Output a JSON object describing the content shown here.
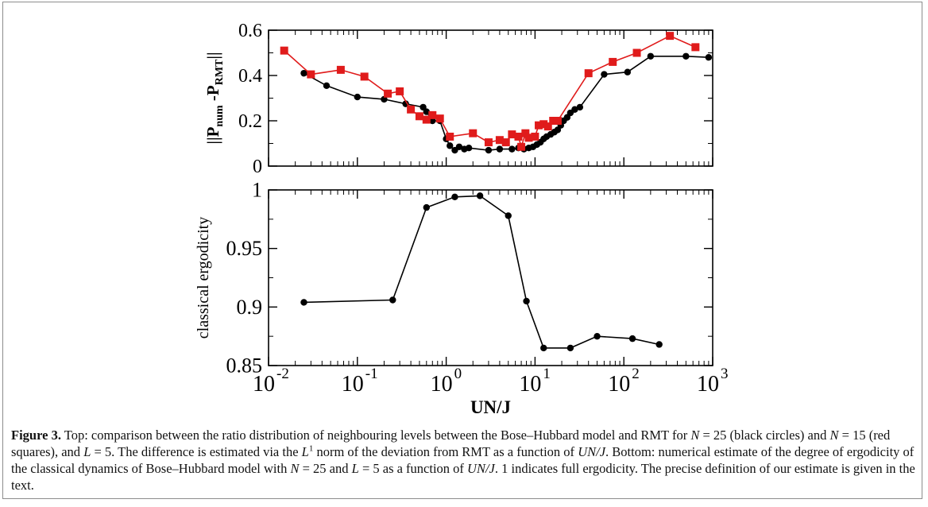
{
  "chart_data": [
    {
      "type": "line",
      "xscale": "log",
      "xlim": [
        0.01,
        1000
      ],
      "ylim": [
        0,
        0.6
      ],
      "yticks": [
        "0",
        "0.2",
        "0.4",
        "0.6"
      ],
      "xlabel": "",
      "ylabel": "||P_num -P_RMT||",
      "series": [
        {
          "color": "#000000",
          "marker": "circle",
          "points": [
            [
              0.025,
              0.41
            ],
            [
              0.045,
              0.355
            ],
            [
              0.1,
              0.305
            ],
            [
              0.2,
              0.295
            ],
            [
              0.35,
              0.275
            ],
            [
              0.55,
              0.26
            ],
            [
              0.6,
              0.24
            ],
            [
              0.7,
              0.2
            ],
            [
              0.85,
              0.2
            ],
            [
              1.0,
              0.12
            ],
            [
              1.1,
              0.09
            ],
            [
              1.25,
              0.07
            ],
            [
              1.4,
              0.085
            ],
            [
              1.6,
              0.075
            ],
            [
              1.8,
              0.08
            ],
            [
              3.0,
              0.07
            ],
            [
              4.0,
              0.075
            ],
            [
              5.5,
              0.075
            ],
            [
              6.5,
              0.08
            ],
            [
              7.5,
              0.075
            ],
            [
              8.5,
              0.08
            ],
            [
              9.5,
              0.085
            ],
            [
              10.5,
              0.095
            ],
            [
              11.5,
              0.105
            ],
            [
              12.5,
              0.12
            ],
            [
              13.5,
              0.13
            ],
            [
              15,
              0.14
            ],
            [
              16.5,
              0.15
            ],
            [
              18,
              0.16
            ],
            [
              19.5,
              0.18
            ],
            [
              21,
              0.2
            ],
            [
              23,
              0.215
            ],
            [
              25,
              0.235
            ],
            [
              28,
              0.25
            ],
            [
              32,
              0.26
            ],
            [
              60,
              0.405
            ],
            [
              110,
              0.415
            ],
            [
              200,
              0.485
            ],
            [
              500,
              0.485
            ],
            [
              900,
              0.48
            ]
          ]
        },
        {
          "color": "#e01b1b",
          "marker": "square",
          "points": [
            [
              0.015,
              0.51
            ],
            [
              0.03,
              0.405
            ],
            [
              0.065,
              0.425
            ],
            [
              0.12,
              0.395
            ],
            [
              0.22,
              0.32
            ],
            [
              0.3,
              0.33
            ],
            [
              0.4,
              0.25
            ],
            [
              0.5,
              0.22
            ],
            [
              0.6,
              0.205
            ],
            [
              0.7,
              0.225
            ],
            [
              0.85,
              0.21
            ],
            [
              1.1,
              0.13
            ],
            [
              2.0,
              0.145
            ],
            [
              3.0,
              0.105
            ],
            [
              4.0,
              0.115
            ],
            [
              4.7,
              0.105
            ],
            [
              5.5,
              0.14
            ],
            [
              6.5,
              0.13
            ],
            [
              7.0,
              0.085
            ],
            [
              7.8,
              0.145
            ],
            [
              8.5,
              0.125
            ],
            [
              10,
              0.13
            ],
            [
              11,
              0.18
            ],
            [
              12.5,
              0.185
            ],
            [
              14,
              0.175
            ],
            [
              16,
              0.2
            ],
            [
              18,
              0.2
            ],
            [
              40,
              0.41
            ],
            [
              75,
              0.46
            ],
            [
              140,
              0.5
            ],
            [
              330,
              0.575
            ],
            [
              640,
              0.525
            ]
          ]
        }
      ]
    },
    {
      "type": "line",
      "xscale": "log",
      "xlim": [
        0.01,
        1000
      ],
      "ylim": [
        0.85,
        1.0
      ],
      "xticks": [
        "10",
        "10",
        "10",
        "10",
        "10",
        "10"
      ],
      "xtick_exponents": [
        "-2",
        "-1",
        "0",
        "1",
        "2",
        "3"
      ],
      "yticks": [
        "0.85",
        "0.9",
        "0.95",
        "1"
      ],
      "xlabel": "UN/J",
      "ylabel": "classical ergodicity",
      "series": [
        {
          "color": "#000000",
          "marker": "circle",
          "points": [
            [
              0.025,
              0.904
            ],
            [
              0.25,
              0.906
            ],
            [
              0.6,
              0.985
            ],
            [
              1.25,
              0.994
            ],
            [
              2.4,
              0.995
            ],
            [
              5.0,
              0.978
            ],
            [
              8.0,
              0.905
            ],
            [
              12.5,
              0.865
            ],
            [
              25,
              0.865
            ],
            [
              50,
              0.875
            ],
            [
              125,
              0.873
            ],
            [
              250,
              0.868
            ]
          ]
        }
      ]
    }
  ],
  "caption": {
    "label": "Figure 3.",
    "segments": [
      {
        "t": " Top: comparison between the ratio distribution of neighbouring levels between the Bose–Hubbard model and RMT for ",
        "i": false
      },
      {
        "t": "N",
        "i": true
      },
      {
        "t": " = 25 (black circles) and ",
        "i": false
      },
      {
        "t": "N",
        "i": true
      },
      {
        "t": " = 15 (red squares), and ",
        "i": false
      },
      {
        "t": "L",
        "i": true
      },
      {
        "t": " = 5. The difference is estimated via the ",
        "i": false
      },
      {
        "t": "L",
        "i": true
      },
      {
        "t": "1",
        "i": false,
        "sup": true
      },
      {
        "t": " norm of the deviation from RMT as a function of ",
        "i": false
      },
      {
        "t": "UN/J",
        "i": true
      },
      {
        "t": ". Bottom: numerical estimate of the degree of ergodicity of the classical dynamics of Bose–Hubbard model with ",
        "i": false
      },
      {
        "t": "N",
        "i": true
      },
      {
        "t": " = 25 and ",
        "i": false
      },
      {
        "t": "L",
        "i": true
      },
      {
        "t": " = 5 as a function of ",
        "i": false
      },
      {
        "t": "UN/J",
        "i": true
      },
      {
        "t": ". 1 indicates full ergodicity. The precise definition of our estimate is given in the text.",
        "i": false
      }
    ]
  }
}
